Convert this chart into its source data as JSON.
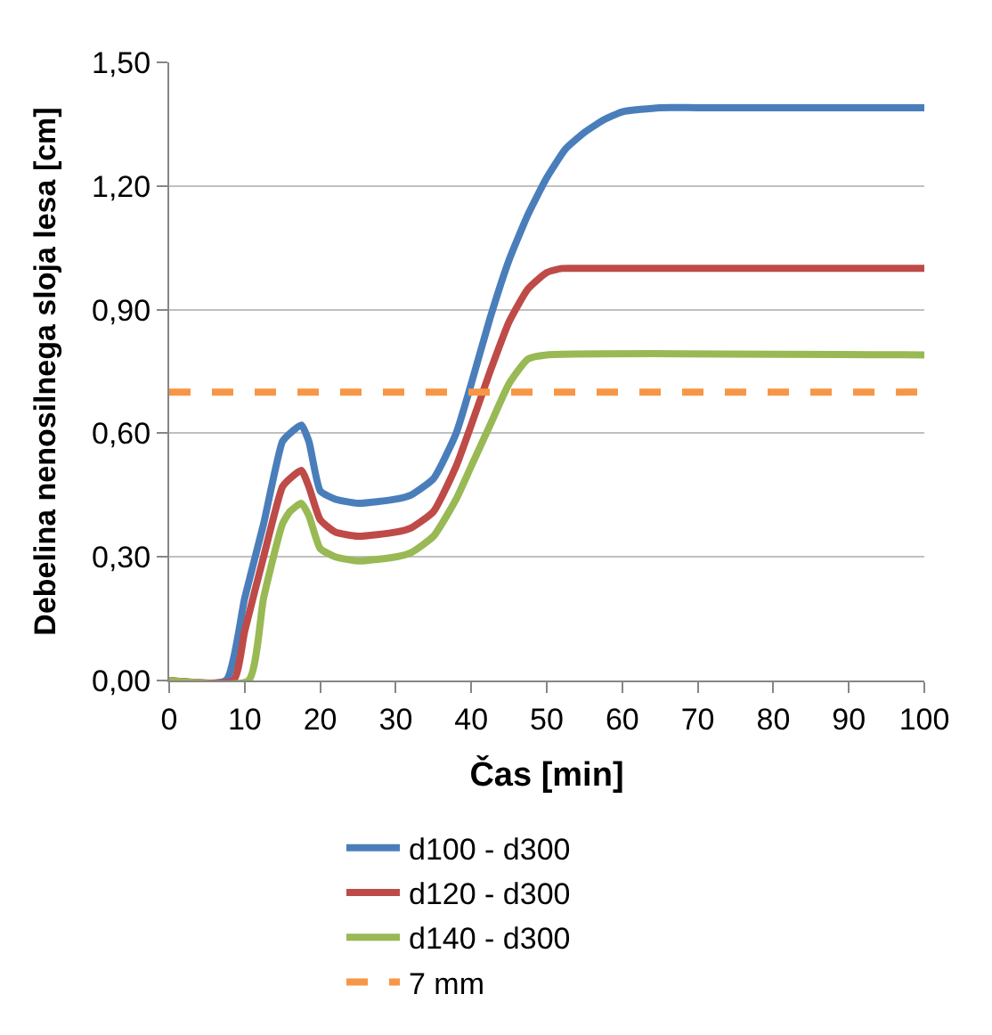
{
  "chart_data": {
    "type": "line",
    "xlabel": "Čas [min]",
    "ylabel": "Debelina nenosilnega sloja lesa [cm]",
    "xlim": [
      0,
      100
    ],
    "xticks": [
      0,
      10,
      20,
      30,
      40,
      50,
      60,
      70,
      80,
      90,
      100
    ],
    "ylim": [
      0,
      1.5
    ],
    "yticks": [
      {
        "value": 0,
        "label": "0,00"
      },
      {
        "value": 0.3,
        "label": "0,30"
      },
      {
        "value": 0.6,
        "label": "0,60"
      },
      {
        "value": 0.9,
        "label": "0,90"
      },
      {
        "value": 1.2,
        "label": "1,20"
      },
      {
        "value": 1.5,
        "label": "1,50"
      }
    ],
    "grid": "y",
    "legend": "bottom",
    "marker": "none",
    "series": [
      {
        "name": "d100 - d300",
        "color": "#4a7ebb",
        "x": [
          0,
          7.5,
          10,
          12.5,
          15,
          16,
          17.5,
          18.5,
          20,
          22,
          25,
          30,
          32,
          35,
          38,
          40,
          42.5,
          45,
          47.5,
          50,
          52.5,
          55,
          57.5,
          60,
          65,
          70,
          100
        ],
        "values": [
          0,
          0,
          0.2,
          0.38,
          0.58,
          0.6,
          0.62,
          0.58,
          0.46,
          0.44,
          0.43,
          0.44,
          0.45,
          0.49,
          0.6,
          0.72,
          0.88,
          1.02,
          1.13,
          1.22,
          1.29,
          1.33,
          1.36,
          1.38,
          1.39,
          1.39,
          1.39
        ]
      },
      {
        "name": "d120 - d300",
        "color": "#be4b48",
        "x": [
          0,
          8.5,
          10,
          12.5,
          15,
          16,
          17.5,
          18.5,
          20,
          22,
          25,
          30,
          32,
          35,
          38,
          40,
          42.5,
          45,
          47.5,
          50,
          52,
          55,
          100
        ],
        "values": [
          0,
          0,
          0.12,
          0.3,
          0.47,
          0.49,
          0.51,
          0.47,
          0.39,
          0.36,
          0.35,
          0.36,
          0.37,
          0.41,
          0.52,
          0.62,
          0.75,
          0.87,
          0.95,
          0.99,
          1.0,
          1.0,
          1.0
        ]
      },
      {
        "name": "d140 - d300",
        "color": "#98b954",
        "x": [
          0,
          10.5,
          12.5,
          15,
          16,
          17.5,
          18.5,
          20,
          22,
          25,
          30,
          32,
          35,
          38,
          40,
          42.5,
          45,
          47.5,
          50,
          100
        ],
        "values": [
          0,
          0,
          0.2,
          0.38,
          0.41,
          0.43,
          0.4,
          0.32,
          0.3,
          0.29,
          0.3,
          0.31,
          0.35,
          0.44,
          0.52,
          0.62,
          0.72,
          0.78,
          0.79,
          0.79
        ]
      },
      {
        "name": "7 mm",
        "color": "#f79646",
        "line_style": "dashed",
        "x": [
          0,
          100
        ],
        "values": [
          0.7,
          0.7
        ]
      }
    ]
  }
}
